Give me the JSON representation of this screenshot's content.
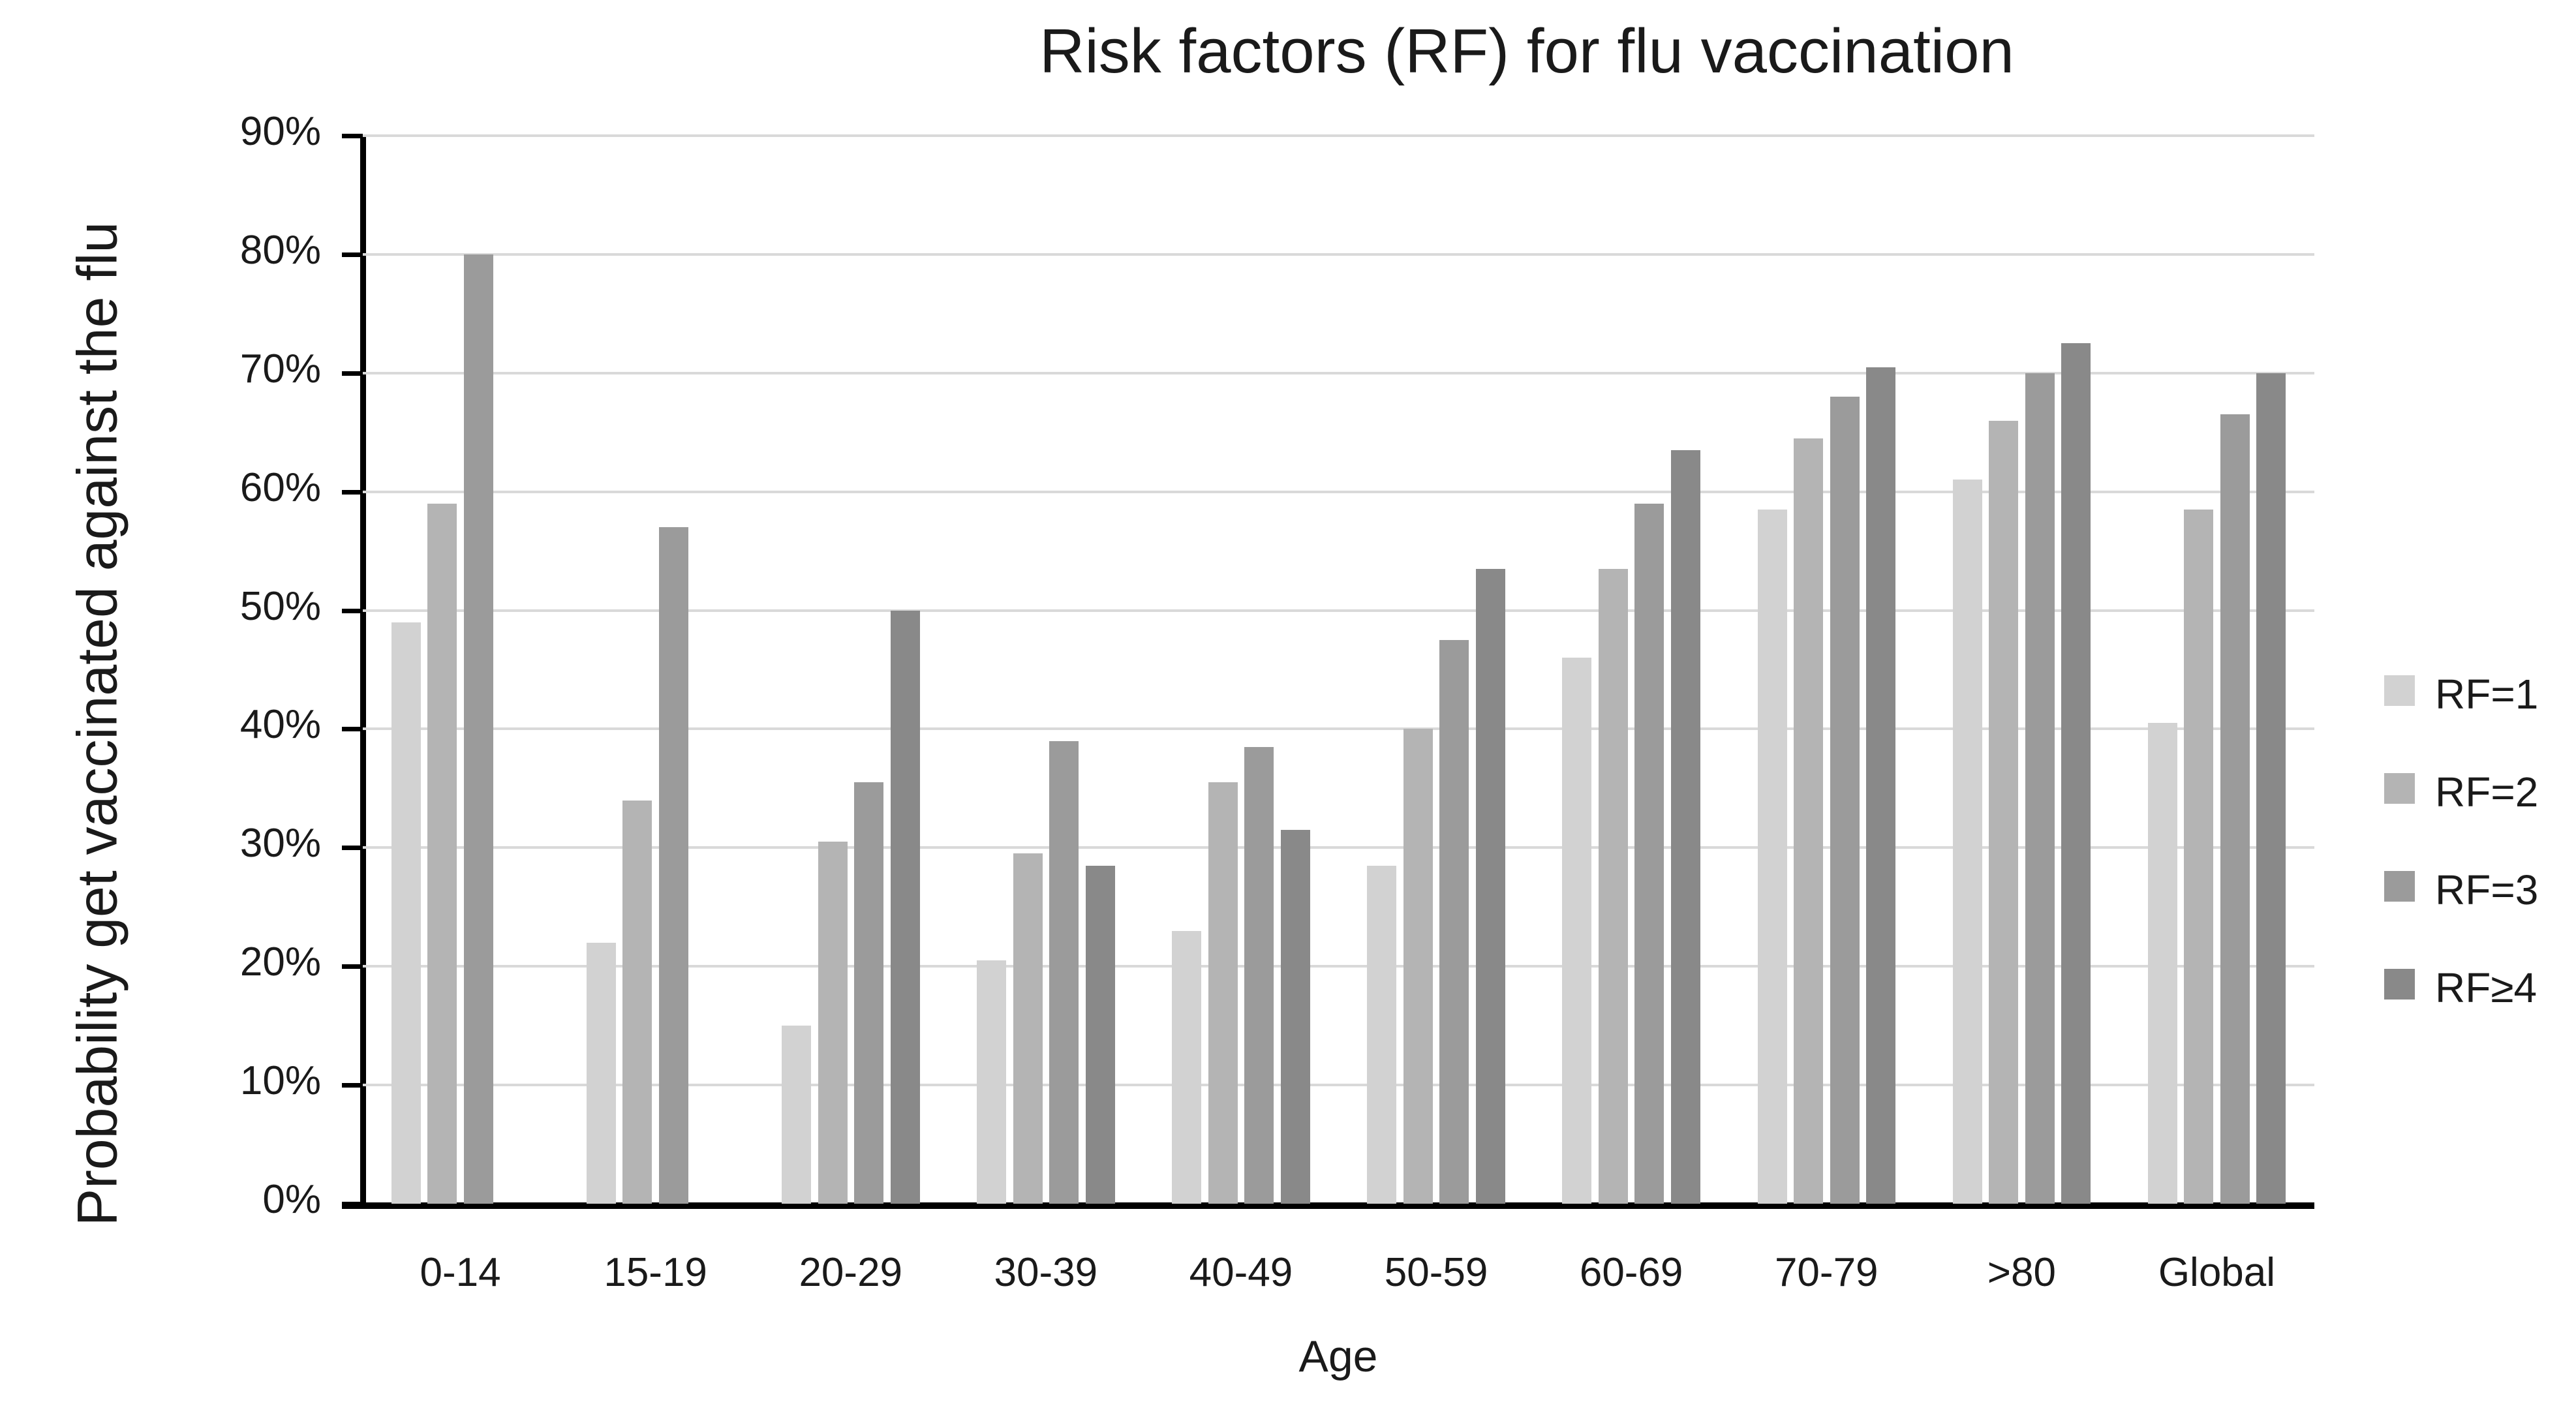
{
  "chart_title": "Risk factors (RF) for flu vaccination",
  "axes": {
    "y_title": "Probability get vaccinated against the flu",
    "x_title": "Age",
    "y_tick_labels": [
      "0%",
      "10%",
      "20%",
      "30%",
      "40%",
      "50%",
      "60%",
      "70%",
      "80%",
      "90%"
    ]
  },
  "legend": {
    "position": "right",
    "entries": [
      "RF=1",
      "RF=2",
      "RF=3",
      "RF≥4"
    ]
  },
  "colors": {
    "rf1": "#d2d2d2",
    "rf2": "#b4b4b4",
    "rf3": "#9b9b9b",
    "rf4": "#898989",
    "gridline": "#d9d9d9",
    "axis": "#000000",
    "text": "#1a1a1a"
  },
  "chart_data": {
    "type": "bar",
    "title": "Risk factors (RF) for flu vaccination",
    "xlabel": "Age",
    "ylabel": "Probability get vaccinated against the flu",
    "ylim": [
      0,
      90
    ],
    "ytick_step": 10,
    "ytick_labels": [
      "0%",
      "10%",
      "20%",
      "30%",
      "40%",
      "50%",
      "60%",
      "70%",
      "80%",
      "90%"
    ],
    "grid": "horizontal",
    "legend_position": "right",
    "value_unit": "percent",
    "categories": [
      "0-14",
      "15-19",
      "20-29",
      "30-39",
      "40-49",
      "50-59",
      "60-69",
      "70-79",
      ">80",
      "Global"
    ],
    "series": [
      {
        "name": "RF=1",
        "color": "#d2d2d2",
        "values": [
          49,
          22,
          15,
          20.5,
          23,
          28.5,
          46,
          58.5,
          61,
          40.5
        ]
      },
      {
        "name": "RF=2",
        "color": "#b4b4b4",
        "values": [
          59,
          34,
          30.5,
          29.5,
          35.5,
          40,
          53.5,
          64.5,
          66,
          58.5
        ]
      },
      {
        "name": "RF=3",
        "color": "#9b9b9b",
        "values": [
          80,
          57,
          35.5,
          39,
          38.5,
          47.5,
          59,
          68,
          70,
          66.5
        ]
      },
      {
        "name": "RF≥4",
        "color": "#898989",
        "values": [
          null,
          null,
          50,
          28.5,
          31.5,
          53.5,
          63.5,
          70.5,
          72.5,
          70
        ]
      }
    ]
  }
}
